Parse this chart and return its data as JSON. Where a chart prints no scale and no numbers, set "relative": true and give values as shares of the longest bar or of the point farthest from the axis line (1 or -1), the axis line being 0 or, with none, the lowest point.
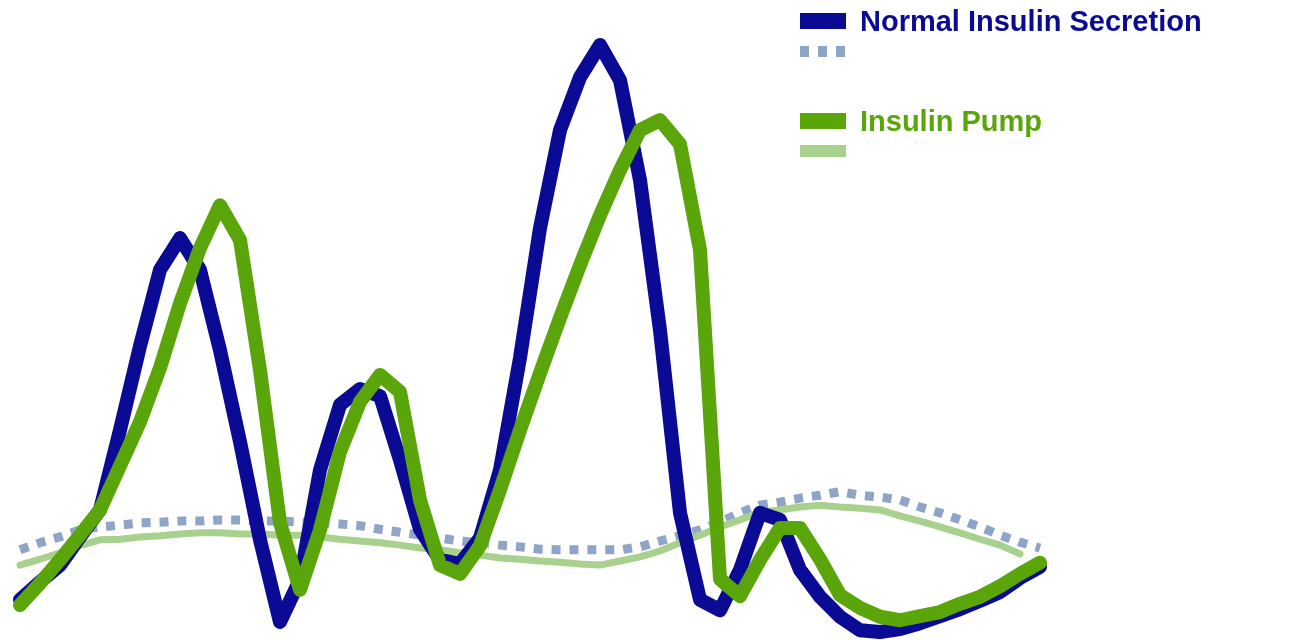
{
  "chart_data": {
    "type": "line",
    "relative": true,
    "legend": "top right",
    "categories": [
      null,
      null,
      null,
      null,
      null,
      null,
      null,
      null,
      null,
      null,
      null,
      null,
      null,
      null,
      null,
      null,
      null,
      null,
      null,
      null,
      null,
      null,
      null,
      null,
      null,
      null,
      null,
      null,
      null,
      null,
      null,
      null,
      null,
      null,
      null,
      null,
      null,
      null,
      null,
      null,
      null,
      null,
      null,
      null,
      null,
      null,
      null,
      null,
      null,
      null,
      null,
      null
    ],
    "series": [
      {
        "name": "Normal Insulin Secretion",
        "color": "#0a0a94",
        "line_style": "solid",
        "values": [
          0.055,
          0.085,
          0.114,
          0.162,
          0.208,
          0.344,
          0.487,
          0.617,
          0.671,
          0.617,
          0.48,
          0.324,
          0.157,
          0.017,
          0.089,
          0.276,
          0.387,
          0.414,
          0.402,
          0.293,
          0.175,
          0.123,
          0.116,
          0.16,
          0.276,
          0.467,
          0.688,
          0.855,
          0.945,
          1,
          0.94,
          0.77,
          0.514,
          0.203,
          0.055,
          0.037,
          0.106,
          0.203,
          0.191,
          0.106,
          0.06,
          0.026,
          0.003,
          0,
          0.005,
          0.015,
          0.027,
          0.039,
          0.053,
          0.068,
          0.092,
          0.111
        ]
      },
      {
        "color": "#8fa5c8",
        "line_style": "dotted",
        "values": [
          0.14,
          0.152,
          0.162,
          0.174,
          0.179,
          0.182,
          0.186,
          0.187,
          0.189,
          0.189,
          0.191,
          0.191,
          0.189,
          0.189,
          0.187,
          0.186,
          0.184,
          0.181,
          0.175,
          0.17,
          0.165,
          0.16,
          0.155,
          0.152,
          0.148,
          0.145,
          0.141,
          0.14,
          0.14,
          0.14,
          0.14,
          0.145,
          0.155,
          0.164,
          0.174,
          0.187,
          0.203,
          0.216,
          0.221,
          0.228,
          0.233,
          0.239,
          0.233,
          0.23,
          0.225,
          0.213,
          0.203,
          0.191,
          0.179,
          0.165,
          0.153,
          0.143
        ]
      },
      {
        "name": "Insulin Pump",
        "color": "#5aa50a",
        "line_style": "solid",
        "values": [
          0.046,
          0.083,
          0.123,
          0.165,
          0.208,
          0.283,
          0.358,
          0.45,
          0.56,
          0.654,
          0.727,
          0.668,
          0.446,
          0.186,
          0.072,
          0.174,
          0.307,
          0.392,
          0.438,
          0.409,
          0.225,
          0.114,
          0.099,
          0.147,
          0.242,
          0.344,
          0.441,
          0.535,
          0.625,
          0.71,
          0.787,
          0.855,
          0.872,
          0.831,
          0.651,
          0.09,
          0.061,
          0.123,
          0.177,
          0.177,
          0.124,
          0.063,
          0.041,
          0.026,
          0.02,
          0.027,
          0.034,
          0.048,
          0.06,
          0.078,
          0.099,
          0.118
        ]
      },
      {
        "color": "#a9d18e",
        "line_style": "solid",
        "values": [
          0.114,
          0.124,
          0.135,
          0.147,
          0.157,
          0.158,
          0.162,
          0.164,
          0.167,
          0.169,
          0.169,
          0.167,
          0.167,
          0.165,
          0.165,
          0.162,
          0.158,
          0.155,
          0.152,
          0.148,
          0.143,
          0.14,
          0.135,
          0.131,
          0.126,
          0.124,
          0.121,
          0.119,
          0.116,
          0.114,
          0.121,
          0.128,
          0.138,
          0.152,
          0.165,
          0.179,
          0.191,
          0.204,
          0.208,
          0.213,
          0.216,
          0.213,
          0.211,
          0.208,
          0.198,
          0.189,
          0.179,
          0.169,
          0.158,
          0.148,
          0.133,
          null
        ]
      }
    ]
  }
}
